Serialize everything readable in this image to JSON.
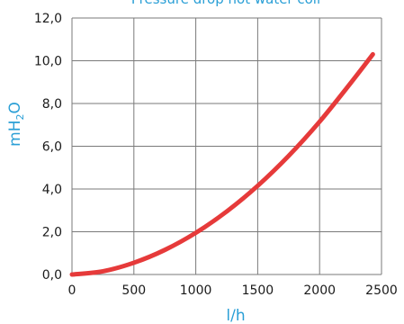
{
  "chart_data": {
    "type": "line",
    "title": "Pressure drop hot water coil",
    "xlabel": "l/h",
    "ylabel": "mH",
    "ylabel_sub": "2",
    "ylabel_suffix": "O",
    "xlim": [
      0,
      2500
    ],
    "ylim": [
      0,
      12
    ],
    "x_ticks": [
      0,
      500,
      1000,
      1500,
      2000,
      2500
    ],
    "x_tick_labels": [
      "0",
      "500",
      "1000",
      "1500",
      "2000",
      "2500"
    ],
    "y_ticks": [
      0,
      2,
      4,
      6,
      8,
      10,
      12
    ],
    "y_tick_labels": [
      "0,0",
      "2,0",
      "4,0",
      "6,0",
      "8,0",
      "10,0",
      "12,0"
    ],
    "grid": true,
    "series": [
      {
        "color": "#e63a3a",
        "x": [
          0,
          250,
          500,
          750,
          1000,
          1250,
          1500,
          1750,
          2000,
          2250,
          2430
        ],
        "y": [
          0.0,
          0.15,
          0.55,
          1.15,
          1.95,
          2.95,
          4.15,
          5.55,
          7.15,
          8.95,
          10.3
        ]
      }
    ]
  },
  "colors": {
    "title": "#2a9fd6",
    "axis_title": "#2a9fd6",
    "grid": "#7a7a7a",
    "series": "#e63a3a"
  }
}
